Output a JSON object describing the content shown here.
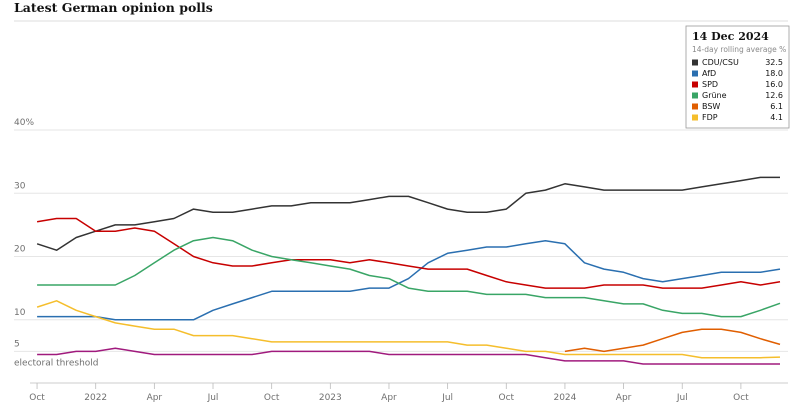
{
  "chart_data": {
    "type": "line",
    "title": "Latest German opinion polls",
    "legend_title": "14 Dec 2024",
    "legend_subtitle": "14-day rolling average %",
    "legend_position": "upper right",
    "grid": true,
    "annotation": {
      "text": "electoral threshold",
      "value": 5
    },
    "xlim": [
      "2021-09",
      "2024-12"
    ],
    "ylim": [
      0,
      40
    ],
    "yticks": [
      {
        "value": 40,
        "label": "40%"
      },
      30,
      20,
      10,
      5
    ],
    "xticks": [
      {
        "value": "2021-10",
        "label": "Oct"
      },
      {
        "value": "2022-01",
        "label": "2022"
      },
      {
        "value": "2022-04",
        "label": "Apr"
      },
      {
        "value": "2022-07",
        "label": "Jul"
      },
      {
        "value": "2022-10",
        "label": "Oct"
      },
      {
        "value": "2023-01",
        "label": "2023"
      },
      {
        "value": "2023-04",
        "label": "Apr"
      },
      {
        "value": "2023-07",
        "label": "Jul"
      },
      {
        "value": "2023-10",
        "label": "Oct"
      },
      {
        "value": "2024-01",
        "label": "2024"
      },
      {
        "value": "2024-04",
        "label": "Apr"
      },
      {
        "value": "2024-07",
        "label": "Jul"
      },
      {
        "value": "2024-10",
        "label": "Oct"
      }
    ],
    "x": [
      "2021-10",
      "2021-11",
      "2021-12",
      "2022-01",
      "2022-02",
      "2022-03",
      "2022-04",
      "2022-05",
      "2022-06",
      "2022-07",
      "2022-08",
      "2022-09",
      "2022-10",
      "2022-11",
      "2022-12",
      "2023-01",
      "2023-02",
      "2023-03",
      "2023-04",
      "2023-05",
      "2023-06",
      "2023-07",
      "2023-08",
      "2023-09",
      "2023-10",
      "2023-11",
      "2023-12",
      "2024-01",
      "2024-02",
      "2024-03",
      "2024-04",
      "2024-05",
      "2024-06",
      "2024-07",
      "2024-08",
      "2024-09",
      "2024-10",
      "2024-11",
      "2024-12"
    ],
    "series": [
      {
        "name": "CDU/CSU",
        "color": "#333333",
        "latest": 32.5,
        "values": [
          22,
          21,
          23,
          24,
          25,
          25,
          25.5,
          26,
          27.5,
          27,
          27,
          27.5,
          28,
          28,
          28.5,
          28.5,
          28.5,
          29,
          29.5,
          29.5,
          28.5,
          27.5,
          27,
          27,
          27.5,
          30,
          30.5,
          31.5,
          31,
          30.5,
          30.5,
          30.5,
          30.5,
          30.5,
          31,
          31.5,
          32,
          32.5,
          32.5
        ]
      },
      {
        "name": "AfD",
        "color": "#2a6fb0",
        "latest": {
          "value": 18,
          "label": "18.0"
        },
        "values": [
          10.5,
          10.5,
          10.5,
          10.5,
          10,
          10,
          10,
          10,
          10,
          11.5,
          12.5,
          13.5,
          14.5,
          14.5,
          14.5,
          14.5,
          14.5,
          15,
          15,
          16.5,
          19,
          20.5,
          21,
          21.5,
          21.5,
          22,
          22.5,
          22,
          19,
          18,
          17.5,
          16.5,
          16,
          16.5,
          17,
          17.5,
          17.5,
          17.5,
          18
        ]
      },
      {
        "name": "SPD",
        "color": "#c70000",
        "latest": {
          "value": 16,
          "label": "16.0"
        },
        "values": [
          25.5,
          26,
          26,
          24,
          24,
          24.5,
          24,
          22,
          20,
          19,
          18.5,
          18.5,
          19,
          19.5,
          19.5,
          19.5,
          19,
          19.5,
          19,
          18.5,
          18,
          18,
          18,
          17,
          16,
          15.5,
          15,
          15,
          15,
          15.5,
          15.5,
          15.5,
          15,
          15,
          15,
          15.5,
          16,
          15.5,
          16
        ]
      },
      {
        "name": "Grüne",
        "color": "#39a566",
        "latest": 12.6,
        "values": [
          15.5,
          15.5,
          15.5,
          15.5,
          15.5,
          17,
          19,
          21,
          22.5,
          23,
          22.5,
          21,
          20,
          19.5,
          19,
          18.5,
          18,
          17,
          16.5,
          15,
          14.5,
          14.5,
          14.5,
          14,
          14,
          14,
          13.5,
          13.5,
          13.5,
          13,
          12.5,
          12.5,
          11.5,
          11,
          11,
          10.5,
          10.5,
          11.5,
          12.6
        ]
      },
      {
        "name": "BSW",
        "color": "#e05e00",
        "latest": 6.1,
        "values": [
          null,
          null,
          null,
          null,
          null,
          null,
          null,
          null,
          null,
          null,
          null,
          null,
          null,
          null,
          null,
          null,
          null,
          null,
          null,
          null,
          null,
          null,
          null,
          null,
          null,
          null,
          null,
          5,
          5.5,
          5,
          5.5,
          6,
          7,
          8,
          8.5,
          8.5,
          8,
          7,
          6.1
        ]
      },
      {
        "name": "FDP",
        "color": "#f5be2c",
        "latest": 4.1,
        "values": [
          12,
          13,
          11.5,
          10.5,
          9.5,
          9,
          8.5,
          8.5,
          7.5,
          7.5,
          7.5,
          7,
          6.5,
          6.5,
          6.5,
          6.5,
          6.5,
          6.5,
          6.5,
          6.5,
          6.5,
          6.5,
          6,
          6,
          5.5,
          5,
          5,
          4.5,
          4.5,
          4.5,
          4.5,
          4.5,
          4.5,
          4.5,
          4,
          4,
          4,
          4,
          4.1
        ]
      },
      {
        "color": "#a01a7d",
        "values": [
          4.5,
          4.5,
          5,
          5,
          5.5,
          5,
          4.5,
          4.5,
          4.5,
          4.5,
          4.5,
          4.5,
          5,
          5,
          5,
          5,
          5,
          5,
          4.5,
          4.5,
          4.5,
          4.5,
          4.5,
          4.5,
          4.5,
          4.5,
          4,
          3.5,
          3.5,
          3.5,
          3.5,
          3,
          3,
          3,
          3,
          3,
          3,
          3,
          3
        ]
      }
    ]
  }
}
